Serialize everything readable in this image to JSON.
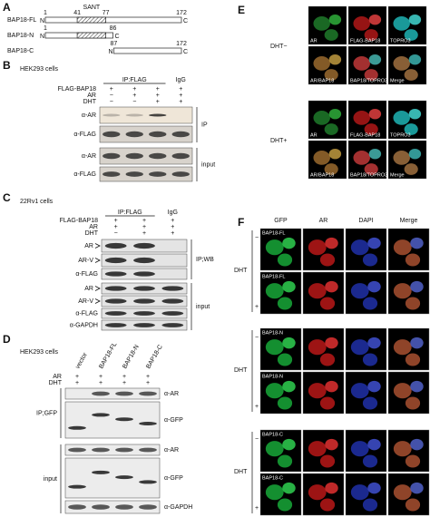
{
  "panel_a": {
    "label": "A",
    "domain": "SANT",
    "n_term": "N",
    "c_term": "C",
    "constructs": [
      {
        "name": "BAP18-FL",
        "ticks": [
          1,
          41,
          77,
          172
        ]
      },
      {
        "name": "BAP18-N",
        "ticks": [
          1,
          86
        ]
      },
      {
        "name": "BAP18-C",
        "ticks": [
          87,
          172
        ]
      }
    ]
  },
  "panel_b": {
    "label": "B",
    "cells": "HEK293 cells",
    "ip": "IP:FLAG",
    "igg": "IgG",
    "conditions": [
      {
        "name": "FLAG-BAP18",
        "signs": [
          "+",
          "+",
          "+",
          "+"
        ]
      },
      {
        "name": "AR",
        "signs": [
          "−",
          "+",
          "+",
          "+"
        ]
      },
      {
        "name": "DHT",
        "signs": [
          "−",
          "−",
          "+",
          "+"
        ]
      }
    ],
    "ip_group": "IP",
    "ip_blots": [
      "α-AR",
      "α-FLAG"
    ],
    "input_group": "input",
    "input_blots": [
      "α-AR",
      "α-FLAG"
    ]
  },
  "panel_c": {
    "label": "C",
    "cells": "22Rv1 cells",
    "ip": "IP:FLAG",
    "igg": "IgG",
    "conditions": [
      {
        "name": "FLAG-BAP18",
        "signs": [
          "+",
          "+",
          "+"
        ]
      },
      {
        "name": "AR",
        "signs": [
          "+",
          "+",
          "+"
        ]
      },
      {
        "name": "DHT",
        "signs": [
          "−",
          "+",
          "+"
        ]
      }
    ],
    "ip_group": "IP;WB",
    "ip_blots": [
      "AR",
      "AR-V",
      "α-FLAG"
    ],
    "input_group": "input",
    "input_blots": [
      "AR",
      "AR-V",
      "α-FLAG",
      "α-GAPDH"
    ]
  },
  "panel_d": {
    "label": "D",
    "cells": "HEK293 cells",
    "lanes": [
      "vector",
      "BAP18-FL",
      "BAP18-N",
      "BAP18-C"
    ],
    "conditions": [
      {
        "name": "AR",
        "signs": [
          "+",
          "+",
          "+",
          "+"
        ]
      },
      {
        "name": "DHT",
        "signs": [
          "+",
          "+",
          "+",
          "+"
        ]
      }
    ],
    "ip_group": "IP;GFP",
    "ip_blots": [
      "α-AR",
      "α-GFP"
    ],
    "input_group": "input",
    "input_blots": [
      "α-AR",
      "α-GFP",
      "α-GAPDH"
    ]
  },
  "panel_e": {
    "label": "E",
    "rows": [
      {
        "treatment": "DHT−",
        "top": [
          "AR",
          "FLAG-BAP18",
          "TOPRO3"
        ],
        "bottom": [
          "AR/BAP18",
          "BAP18/TOPRO3",
          "Merge"
        ]
      },
      {
        "treatment": "DHT+",
        "top": [
          "AR",
          "FLAG-BAP18",
          "TOPRO3"
        ],
        "bottom": [
          "AR/BAP18",
          "BAP18/TOPRO3",
          "Merge"
        ]
      }
    ]
  },
  "panel_f": {
    "label": "F",
    "columns": [
      "GFP",
      "AR",
      "DAPI",
      "Merge"
    ],
    "treatment": "DHT",
    "minus": "−",
    "plus": "+",
    "groups": [
      {
        "name": "BAP18-FL"
      },
      {
        "name": "BAP18-N"
      },
      {
        "name": "BAP18-C"
      }
    ]
  }
}
